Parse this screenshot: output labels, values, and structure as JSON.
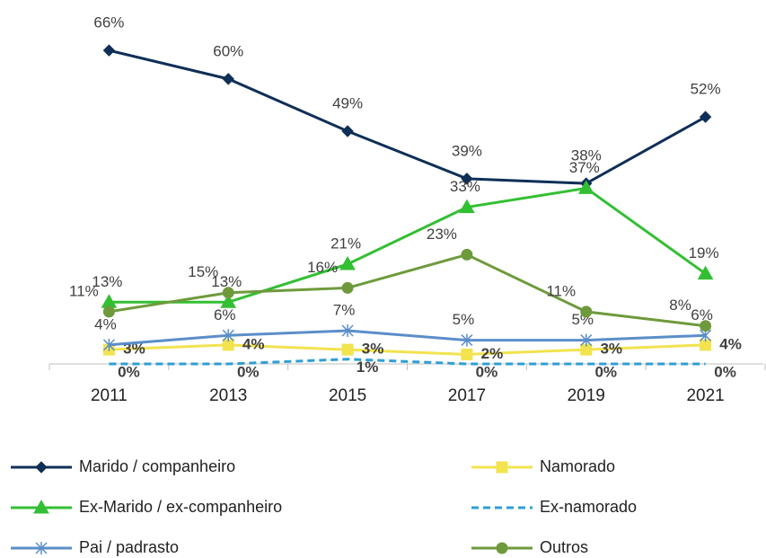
{
  "chart_data": {
    "type": "line",
    "categories": [
      "2011",
      "2013",
      "2015",
      "2017",
      "2019",
      "2021"
    ],
    "ylim": [
      0,
      70
    ],
    "legend": "bottom",
    "series": [
      {
        "name": "Marido / companheiro",
        "color": "#0f2f57",
        "marker": "diamond",
        "values": [
          66,
          60,
          49,
          39,
          38,
          52
        ],
        "value_labels": [
          "66%",
          "60%",
          "49%",
          "39%",
          "38%",
          "52%"
        ]
      },
      {
        "name": "Namorado",
        "color": "#f2e34f",
        "marker": "square",
        "values": [
          3,
          4,
          3,
          2,
          3,
          4
        ],
        "value_labels": [
          "3%",
          "4%",
          "3%",
          "2%",
          "3%",
          "4%"
        ]
      },
      {
        "name": "Ex-Marido / ex-companheiro",
        "color": "#33bf33",
        "marker": "triangle",
        "values": [
          13,
          13,
          21,
          33,
          37,
          19
        ],
        "value_labels": [
          "13%",
          "13%",
          "21%",
          "33%",
          "37%",
          "19%"
        ]
      },
      {
        "name": "Ex-namorado",
        "color": "#2e9fd4",
        "marker": "none",
        "dashed": true,
        "values": [
          0,
          0,
          1,
          0,
          0,
          0
        ],
        "value_labels": [
          "0%",
          "0%",
          "1%",
          "0%",
          "0%",
          "0%"
        ]
      },
      {
        "name": "Pai / padrasto",
        "color": "#5b8ec9",
        "marker": "asterisk",
        "values": [
          4,
          6,
          7,
          5,
          5,
          6
        ],
        "value_labels": [
          "4%",
          "6%",
          "7%",
          "5%",
          "5%",
          "6%"
        ]
      },
      {
        "name": "Outros",
        "color": "#6e9a3c",
        "marker": "circle",
        "values": [
          11,
          15,
          16,
          23,
          11,
          8
        ],
        "value_labels": [
          "11%",
          "15%",
          "16%",
          "23%",
          "11%",
          "8%"
        ]
      }
    ]
  }
}
